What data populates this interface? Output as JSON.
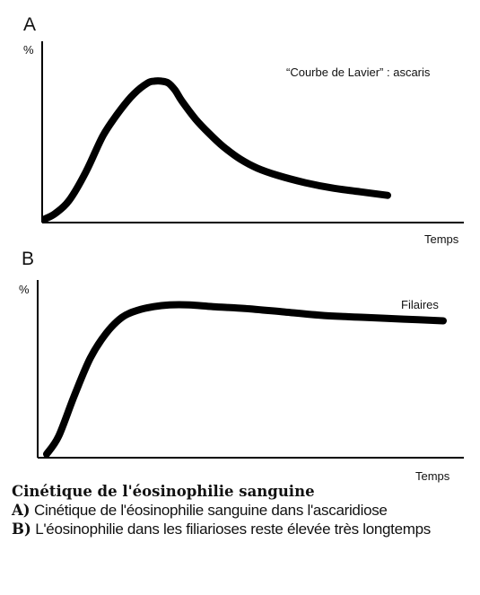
{
  "chart_data": [
    {
      "type": "line",
      "panel": "A",
      "ylabel": "%",
      "xlabel": "Temps",
      "annotation": "“Courbe de Lavier” : ascaris",
      "xlim": [
        0,
        100
      ],
      "ylim": [
        0,
        100
      ],
      "series": [
        {
          "x": [
            0,
            3,
            7,
            12,
            17,
            22,
            26,
            30,
            32,
            34,
            36,
            38,
            40,
            44,
            48,
            52,
            57,
            62,
            68,
            76,
            84,
            92,
            100
          ],
          "values": [
            2,
            5,
            12,
            28,
            48,
            62,
            71,
            77,
            78,
            78,
            77,
            73,
            67,
            57,
            49,
            42,
            35,
            30,
            26,
            22,
            19,
            17,
            15
          ]
        }
      ]
    },
    {
      "type": "line",
      "panel": "B",
      "ylabel": "%",
      "xlabel": "Temps",
      "annotation": "Filaires",
      "xlim": [
        0,
        100
      ],
      "ylim": [
        0,
        100
      ],
      "series": [
        {
          "x": [
            0,
            3,
            7,
            11,
            15,
            19,
            23,
            27,
            31,
            36,
            42,
            50,
            60,
            70,
            80,
            90,
            100
          ],
          "values": [
            2,
            12,
            35,
            56,
            70,
            79,
            83,
            85,
            86,
            86,
            85,
            84,
            82,
            80,
            79,
            78,
            77
          ]
        }
      ]
    }
  ],
  "caption": {
    "title": "Cinétique de l'éosinophilie sanguine",
    "items": [
      {
        "label": "A)",
        "text": " Cinétique de l'éosinophilie sanguine dans l'ascaridiose"
      },
      {
        "label": "B)",
        "text": " L'éosinophilie dans les filiarioses reste élevée très longtemps"
      }
    ]
  }
}
